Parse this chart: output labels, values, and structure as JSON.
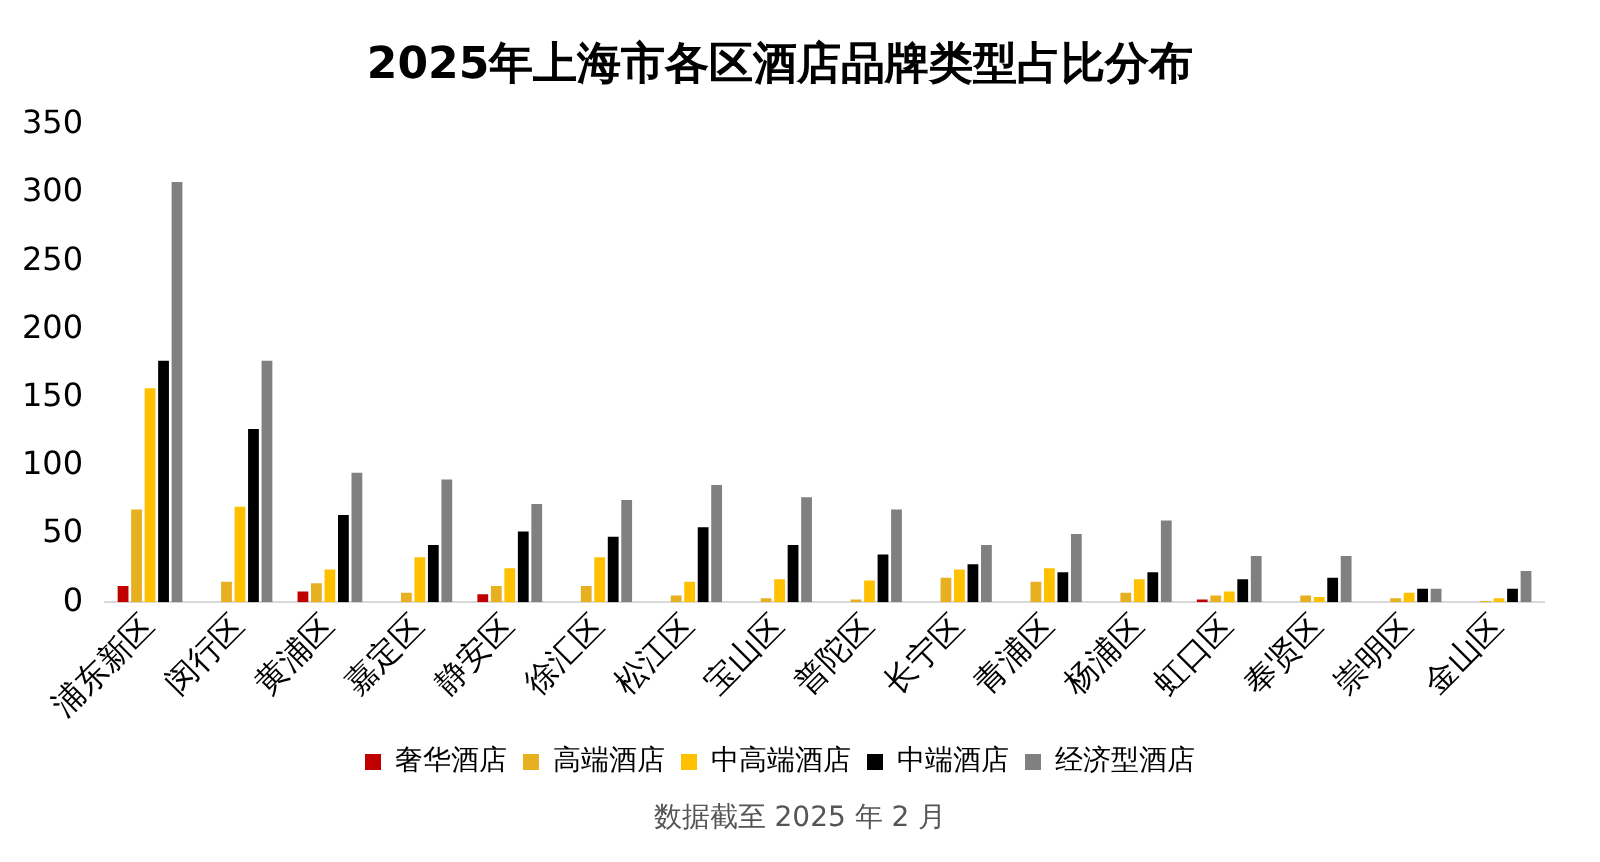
{
  "chart_data": {
    "type": "bar",
    "title": "2025年上海市各区酒店品牌类型占比分布",
    "categories": [
      "浦东新区",
      "闵行区",
      "黄浦区",
      "嘉定区",
      "静安区",
      "徐汇区",
      "松江区",
      "宝山区",
      "普陀区",
      "长宁区",
      "青浦区",
      "杨浦区",
      "虹口区",
      "奉贤区",
      "崇明区",
      "金山区"
    ],
    "series": [
      {
        "name": "奢华酒店",
        "color": "#c00000",
        "values": [
          12,
          0,
          8,
          0,
          6,
          0,
          0,
          0,
          0,
          0,
          0,
          0,
          2,
          0,
          0,
          0
        ]
      },
      {
        "name": "高端酒店",
        "color": "#e6b020",
        "values": [
          68,
          15,
          14,
          7,
          12,
          12,
          5,
          3,
          2,
          18,
          15,
          7,
          5,
          5,
          3,
          1
        ]
      },
      {
        "name": "中高端酒店",
        "color": "#ffc000",
        "values": [
          157,
          70,
          24,
          33,
          25,
          33,
          15,
          17,
          16,
          24,
          25,
          17,
          8,
          4,
          7,
          3
        ]
      },
      {
        "name": "中端酒店",
        "color": "#000000",
        "values": [
          177,
          127,
          64,
          42,
          52,
          48,
          55,
          42,
          35,
          28,
          22,
          22,
          17,
          18,
          10,
          10
        ]
      },
      {
        "name": "经济型酒店",
        "color": "#808080",
        "values": [
          308,
          177,
          95,
          90,
          72,
          75,
          86,
          77,
          68,
          42,
          50,
          60,
          34,
          34,
          10,
          23
        ]
      }
    ],
    "ylim": [
      0,
      350
    ],
    "yticks": [
      0,
      50,
      100,
      150,
      200,
      250,
      300,
      350
    ],
    "grid": false,
    "legend": "bottom",
    "annotations": [
      "数据截至 2025 年 2 月"
    ]
  }
}
